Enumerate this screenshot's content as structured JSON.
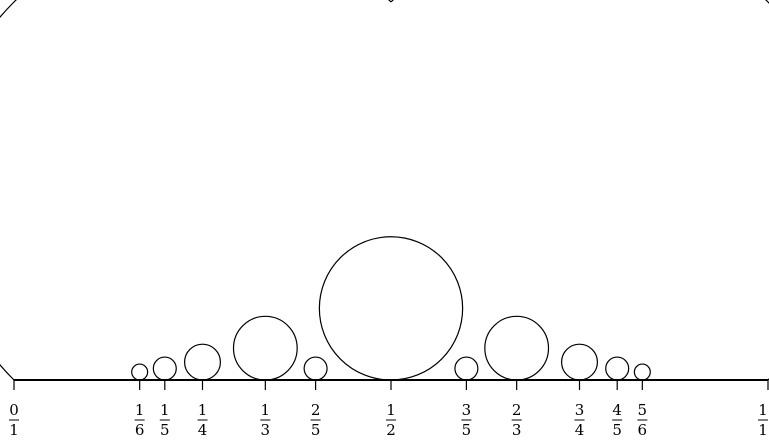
{
  "diagram": {
    "fractions": [
      {
        "num": "0",
        "den": "1",
        "value": 0
      },
      {
        "num": "1",
        "den": "6",
        "value": 0.16667
      },
      {
        "num": "1",
        "den": "5",
        "value": 0.2
      },
      {
        "num": "1",
        "den": "4",
        "value": 0.25
      },
      {
        "num": "1",
        "den": "3",
        "value": 0.33333
      },
      {
        "num": "2",
        "den": "5",
        "value": 0.4
      },
      {
        "num": "1",
        "den": "2",
        "value": 0.5
      },
      {
        "num": "3",
        "den": "5",
        "value": 0.6
      },
      {
        "num": "2",
        "den": "3",
        "value": 0.66667
      },
      {
        "num": "3",
        "den": "4",
        "value": 0.75
      },
      {
        "num": "4",
        "den": "5",
        "value": 0.8
      },
      {
        "num": "5",
        "den": "6",
        "value": 0.83333
      },
      {
        "num": "1",
        "den": "1",
        "value": 1
      }
    ],
    "circles": [
      {
        "num": 1,
        "den": 2
      },
      {
        "num": 1,
        "den": 3
      },
      {
        "num": 2,
        "den": 3
      },
      {
        "num": 1,
        "den": 4
      },
      {
        "num": 3,
        "den": 4
      },
      {
        "num": 2,
        "den": 5
      },
      {
        "num": 3,
        "den": 5
      },
      {
        "num": 1,
        "den": 5
      },
      {
        "num": 4,
        "den": 5
      },
      {
        "num": 1,
        "den": 6
      },
      {
        "num": 5,
        "den": 6
      }
    ],
    "colors": {
      "stroke": "#000000",
      "background": "#ffffff"
    }
  }
}
